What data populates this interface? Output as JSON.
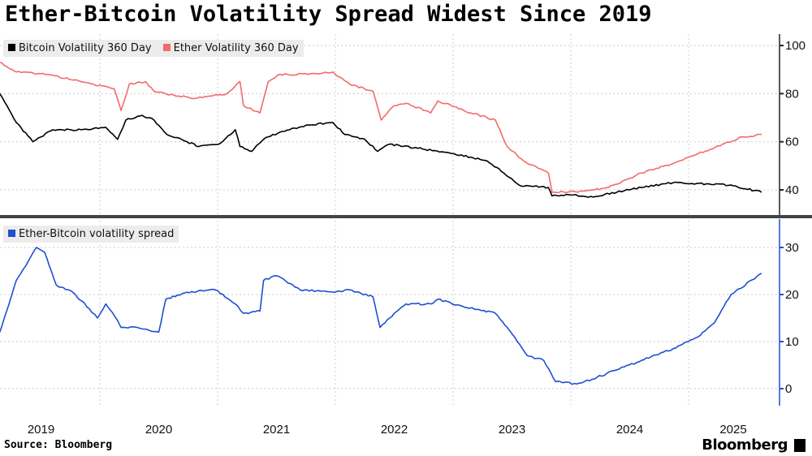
{
  "title": "Ether-Bitcoin Volatility Spread Widest Since 2019",
  "source": "Source: Bloomberg",
  "logo": "Bloomberg",
  "chart_data": [
    {
      "type": "line",
      "panel": "top",
      "xlim": [
        2019.15,
        2025.62
      ],
      "ylim": [
        30,
        103
      ],
      "yticks": [
        40,
        60,
        80,
        100
      ],
      "xticks": [
        "2019",
        "2020",
        "2021",
        "2022",
        "2023",
        "2024",
        "2025"
      ],
      "legend_placement": "top-left",
      "series": [
        {
          "name": "Bitcoin Volatility 360 Day",
          "color": "#000000",
          "x": [
            2019.15,
            2019.29,
            2019.43,
            2019.5,
            2019.6,
            2019.84,
            2020.05,
            2020.15,
            2020.22,
            2020.36,
            2020.46,
            2020.57,
            2020.74,
            2020.84,
            2021.01,
            2021.15,
            2021.19,
            2021.29,
            2021.39,
            2021.53,
            2021.77,
            2021.98,
            2022.08,
            2022.25,
            2022.36,
            2022.46,
            2022.74,
            2023.01,
            2023.29,
            2023.43,
            2023.56,
            2023.81,
            2023.84,
            2023.98,
            2024.19,
            2024.39,
            2024.6,
            2024.87,
            2025.15,
            2025.36,
            2025.62
          ],
          "y": [
            80,
            68,
            60,
            62,
            65,
            65,
            66,
            61,
            69,
            71,
            69,
            63,
            60,
            58,
            59,
            65,
            58,
            56,
            61,
            64,
            67,
            68,
            63,
            61,
            56,
            59,
            57,
            55,
            52,
            47,
            42,
            41,
            37.5,
            38,
            37,
            39,
            41,
            43,
            42.5,
            42,
            39
          ]
        },
        {
          "name": "Ether Volatility 360 Day",
          "color": "#f26b6b",
          "x": [
            2019.15,
            2019.29,
            2019.56,
            2019.84,
            2020.12,
            2020.18,
            2020.25,
            2020.39,
            2020.46,
            2020.67,
            2020.81,
            2021.08,
            2021.19,
            2021.22,
            2021.36,
            2021.43,
            2021.53,
            2021.77,
            2021.98,
            2022.12,
            2022.32,
            2022.39,
            2022.5,
            2022.6,
            2022.81,
            2022.87,
            2023.15,
            2023.36,
            2023.46,
            2023.6,
            2023.81,
            2023.84,
            2024.12,
            2024.32,
            2024.6,
            2024.87,
            2025.08,
            2025.29,
            2025.46,
            2025.62
          ],
          "y": [
            93,
            89,
            88,
            85,
            82,
            73,
            84,
            85,
            81,
            79,
            78,
            80,
            85,
            75,
            72,
            85,
            88,
            88,
            89,
            84,
            81,
            69,
            75,
            76,
            72,
            77,
            72,
            69,
            58,
            52,
            47,
            39,
            39.5,
            41,
            47,
            51,
            55,
            59,
            62,
            63
          ]
        }
      ]
    },
    {
      "type": "line",
      "panel": "bottom",
      "xlim": [
        2019.15,
        2025.62
      ],
      "ylim": [
        -3,
        36
      ],
      "yticks": [
        0,
        10,
        20,
        30
      ],
      "legend_placement": "top-left",
      "series": [
        {
          "name": "Ether-Bitcoin volatility spread",
          "color": "#1f4fd1",
          "x": [
            2019.15,
            2019.29,
            2019.39,
            2019.46,
            2019.53,
            2019.63,
            2019.77,
            2019.91,
            2019.98,
            2020.05,
            2020.15,
            2020.18,
            2020.32,
            2020.5,
            2020.56,
            2020.74,
            2020.98,
            2021.15,
            2021.22,
            2021.36,
            2021.39,
            2021.5,
            2021.7,
            2021.98,
            2022.12,
            2022.32,
            2022.38,
            2022.46,
            2022.6,
            2022.81,
            2022.87,
            2023.08,
            2023.36,
            2023.46,
            2023.63,
            2023.77,
            2023.87,
            2024.05,
            2024.18,
            2024.39,
            2024.6,
            2024.87,
            2025.08,
            2025.22,
            2025.36,
            2025.62
          ],
          "y": [
            12,
            23,
            27,
            30,
            29,
            22,
            20.5,
            17,
            15,
            18,
            14.5,
            13,
            13,
            12,
            19,
            20.5,
            21,
            18,
            16,
            16.5,
            23,
            24,
            21,
            20.5,
            21,
            19.5,
            13,
            15,
            18,
            18,
            19,
            17.5,
            16,
            13,
            7,
            6,
            1.5,
            1,
            2,
            4,
            6,
            8.5,
            11,
            14,
            20,
            24.5
          ]
        }
      ]
    }
  ]
}
